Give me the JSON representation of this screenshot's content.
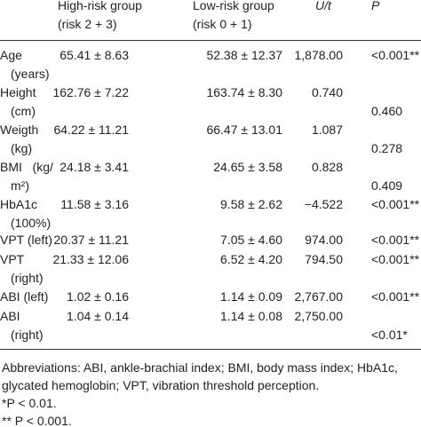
{
  "table": {
    "columns": [
      [
        "High-risk group",
        "(risk 2 + 3)"
      ],
      [
        "Low-risk group",
        "(risk 0 + 1)"
      ],
      [
        "U/t"
      ],
      [
        "P"
      ]
    ],
    "rows": [
      {
        "label": [
          "Age",
          "(years)"
        ],
        "high": "65.41 ± 8.63",
        "low": "52.38 ± 12.37",
        "ut": "1,878.00",
        "p": "<0.001**"
      },
      {
        "label": [
          "Height",
          "(cm)"
        ],
        "high": "162.76 ± 7.22",
        "low": "163.74 ± 8.30",
        "ut": "0.740",
        "p": "0.460"
      },
      {
        "label": [
          "Weigth",
          "(kg)"
        ],
        "high": "64.22 ± 11.21",
        "low": "66.47 ± 13.01",
        "ut": "1.087",
        "p": "0.278"
      },
      {
        "label": [
          "BMI   (kg/",
          "m²)"
        ],
        "high": "24.18 ± 3.41",
        "low": "24.65 ± 3.58",
        "ut": "0.828",
        "p": "0.409"
      },
      {
        "label": [
          "HbA1c",
          "(100%)"
        ],
        "high": "11.58 ± 3.16",
        "low": "9.58 ± 2.62",
        "ut": "−4.522",
        "p": "<0.001**"
      },
      {
        "label": [
          "VPT (left)"
        ],
        "high": "20.37 ± 11.21",
        "low": "7.05 ± 4.60",
        "ut": "974.00",
        "p": "<0.001**"
      },
      {
        "label": [
          "VPT",
          "(right)"
        ],
        "high": "21.33 ± 12.06",
        "low": "6.52 ± 4.20",
        "ut": "794.50",
        "p": "<0.001**"
      },
      {
        "label": [
          "ABI (left)"
        ],
        "high": "1.02 ± 0.16",
        "low": "1.14 ± 0.09",
        "ut": "2,767.00",
        "p": "<0.001**"
      },
      {
        "label": [
          "ABI",
          "(right)"
        ],
        "high": "1.04 ± 0.14",
        "low": "1.14 ± 0.08",
        "ut": "2,750.00",
        "p": "<0.01*"
      }
    ],
    "footnotes": [
      "Abbreviations: ABI, ankle-brachial index; BMI, body mass index; HbA1c, glycated hemoglobin; VPT, vibration threshold perception.",
      "*P < 0.01.",
      "** P < 0.001."
    ]
  }
}
